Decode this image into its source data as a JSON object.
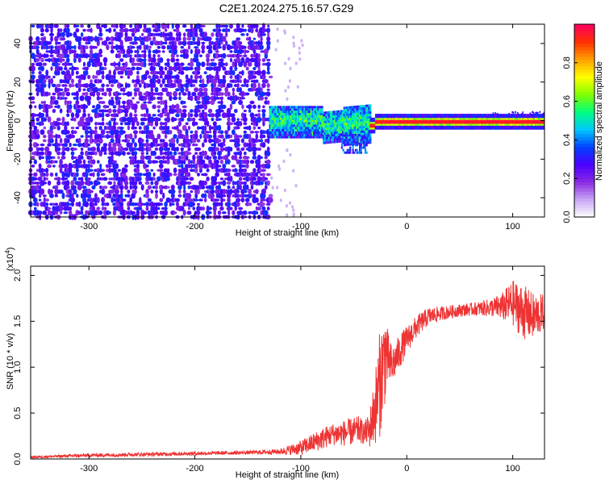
{
  "title": "C2E1.2024.275.16.57.G29",
  "chart_data": [
    {
      "type": "heatmap",
      "name": "spectrogram",
      "xlabel": "Height of straight line (km)",
      "ylabel": "Frequency (Hz)",
      "xlim": [
        -355,
        130
      ],
      "ylim": [
        -50,
        50
      ],
      "xticks": [
        -300,
        -200,
        -100,
        0,
        100
      ],
      "yticks": [
        -40,
        -20,
        0,
        20,
        40
      ],
      "colorbar": {
        "label": "Normalized spectral amplitude",
        "ticks": [
          "0.0",
          "0.2",
          "0.4",
          "0.6",
          "0.8"
        ],
        "tick_values": [
          0.0,
          0.2,
          0.4,
          0.6,
          0.8
        ],
        "range": [
          0,
          1
        ],
        "colors": [
          "#ffffff",
          "#c9a7f5",
          "#8a2be2",
          "#4b00ff",
          "#0040ff",
          "#00c8ff",
          "#00ff80",
          "#80ff00",
          "#ffff00",
          "#ffa000",
          "#ff3000",
          "#ff0060"
        ]
      },
      "regions": [
        {
          "description_key": "noise",
          "x_range": [
            -355,
            -130
          ],
          "freq_range": [
            -50,
            50
          ],
          "amplitude": 0.15
        },
        {
          "description_key": "sparse",
          "x_range": [
            -130,
            -100
          ],
          "freq_range": [
            -50,
            50
          ],
          "amplitude": 0.05
        },
        {
          "description_key": "signal_wide",
          "x_range": [
            -130,
            -35
          ],
          "freq_range": [
            -12,
            8
          ],
          "amplitude": 0.35
        },
        {
          "description_key": "signal_line",
          "x_range": [
            -35,
            130
          ],
          "freq_center": 0,
          "amplitude": 0.9
        }
      ]
    },
    {
      "type": "line",
      "name": "snr",
      "xlabel": "Height of straight line (km)",
      "ylabel": "SNR (10 * v/v)",
      "y_multiplier_label": "(x10",
      "y_multiplier_exp": "4",
      "xlim": [
        -355,
        130
      ],
      "ylim": [
        0,
        2.1
      ],
      "xticks": [
        -300,
        -200,
        -100,
        0,
        100
      ],
      "yticks": [
        "0.0",
        "0.5",
        "1.0",
        "1.5",
        "2.0"
      ],
      "ytick_values": [
        0.0,
        0.5,
        1.0,
        1.5,
        2.0
      ],
      "color": "#ee3333",
      "x": [
        -355,
        -300,
        -250,
        -200,
        -150,
        -120,
        -100,
        -80,
        -70,
        -60,
        -50,
        -45,
        -40,
        -35,
        -30,
        -25,
        -22,
        -20,
        -18,
        -16,
        -14,
        -12,
        -10,
        -5,
        0,
        10,
        20,
        30,
        40,
        50,
        60,
        70,
        80,
        90,
        100,
        110,
        120,
        130
      ],
      "y": [
        0.02,
        0.04,
        0.05,
        0.06,
        0.07,
        0.08,
        0.12,
        0.22,
        0.27,
        0.28,
        0.3,
        0.32,
        0.28,
        0.32,
        0.55,
        0.85,
        1.05,
        1.15,
        1.1,
        1.05,
        1.0,
        1.05,
        1.1,
        1.2,
        1.3,
        1.45,
        1.55,
        1.58,
        1.6,
        1.62,
        1.63,
        1.64,
        1.65,
        1.66,
        1.7,
        1.6,
        1.55,
        1.6
      ],
      "noise_amp": [
        0.01,
        0.02,
        0.02,
        0.02,
        0.02,
        0.03,
        0.08,
        0.12,
        0.12,
        0.14,
        0.15,
        0.15,
        0.12,
        0.2,
        0.4,
        0.6,
        0.5,
        0.55,
        0.3,
        0.25,
        0.25,
        0.2,
        0.2,
        0.18,
        0.15,
        0.12,
        0.1,
        0.08,
        0.07,
        0.07,
        0.07,
        0.08,
        0.1,
        0.15,
        0.25,
        0.3,
        0.25,
        0.2
      ]
    }
  ]
}
